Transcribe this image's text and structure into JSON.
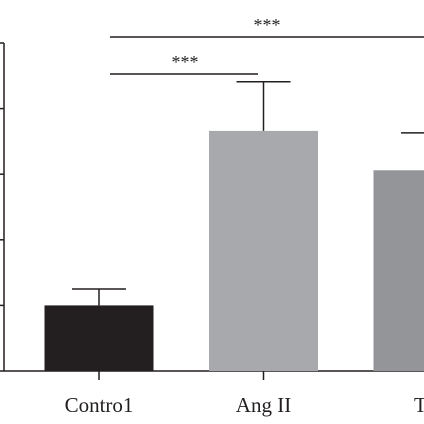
{
  "chart_data": {
    "type": "bar",
    "categories": [
      "Contro1",
      "Ang II",
      "TG"
    ],
    "values": [
      1.0,
      3.66,
      3.06
    ],
    "errors": [
      0.25,
      0.75,
      0.57
    ],
    "colors": [
      "#231f20",
      "#a7a9ac",
      "#939598"
    ],
    "ylim": [
      0,
      5
    ],
    "yticks": [
      0,
      1,
      2,
      3,
      4,
      5
    ],
    "annotations": [
      "***",
      "***"
    ]
  }
}
